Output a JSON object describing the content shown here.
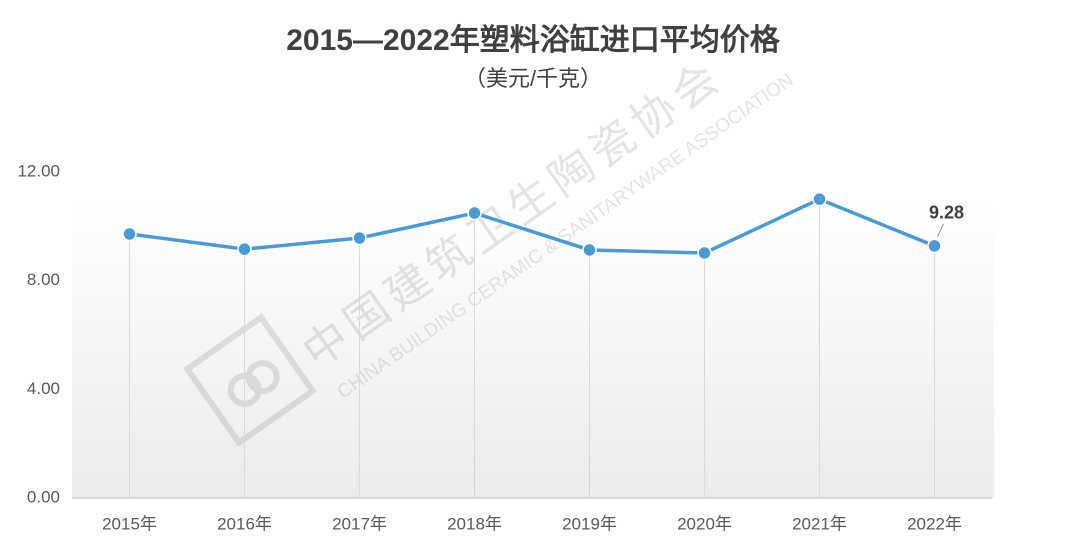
{
  "chart_data": {
    "type": "line",
    "title": "2015—2022年塑料浴缸进口平均价格",
    "subtitle": "（美元/千克）",
    "categories": [
      "2015年",
      "2016年",
      "2017年",
      "2018年",
      "2019年",
      "2020年",
      "2021年",
      "2022年"
    ],
    "series": [
      {
        "name": "塑料浴缸进口平均价格",
        "color": "#4a9bd3",
        "values": [
          9.72,
          9.16,
          9.57,
          10.49,
          9.13,
          9.02,
          11.0,
          9.28
        ]
      }
    ],
    "data_label": "last",
    "ylim": [
      0,
      12
    ],
    "yticks": [
      {
        "value": 0,
        "label": "0.00"
      },
      {
        "value": 4,
        "label": "4.00"
      },
      {
        "value": 8,
        "label": "8.00"
      },
      {
        "value": 12,
        "label": "12.00"
      }
    ],
    "watermark": {
      "name": "中国建筑卫生陶瓷协会",
      "english": "CHINA BUILDING CERAMIC & SANITARYWARE ASSOCIATION"
    }
  }
}
